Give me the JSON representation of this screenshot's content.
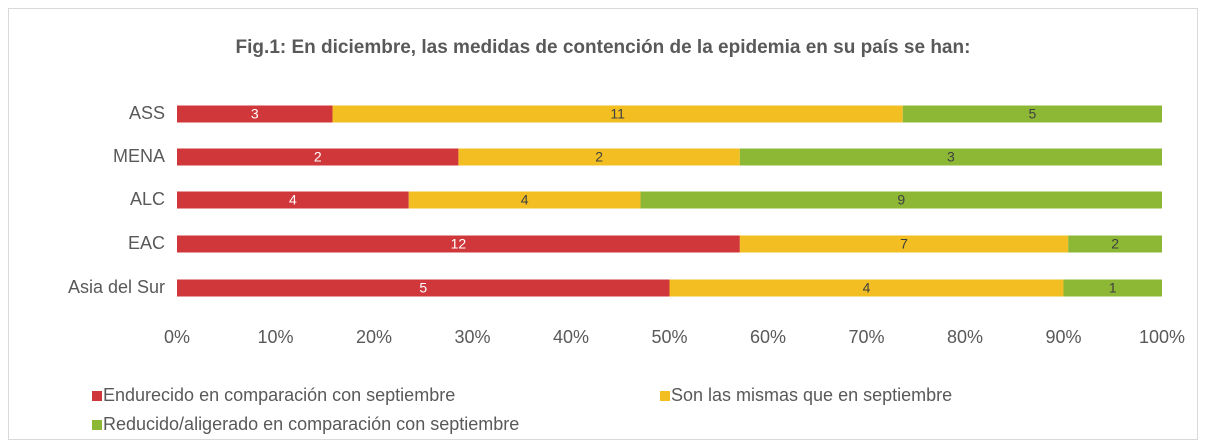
{
  "chart_data": {
    "type": "bar",
    "orientation": "horizontal",
    "stacking": "percent",
    "title": "Fig.1: En diciembre, las medidas de contención de la epidemia en su país se han:",
    "categories": [
      "ASS",
      "MENA",
      "ALC",
      "EAC",
      "Asia del Sur"
    ],
    "series": [
      {
        "name": "Endurecido en comparación con septiembre",
        "color": "#d0373b",
        "values": [
          3,
          2,
          4,
          12,
          5
        ]
      },
      {
        "name": "Son las mismas que en septiembre",
        "color": "#f2be22",
        "values": [
          11,
          2,
          4,
          7,
          4
        ]
      },
      {
        "name": "Reducido/aligerado en comparación con septiembre",
        "color": "#8db836",
        "values": [
          5,
          3,
          9,
          2,
          1
        ]
      }
    ],
    "xlim": [
      0,
      100
    ],
    "xticks": [
      {
        "value": 0,
        "label": "0%"
      },
      {
        "value": 10,
        "label": "10%"
      },
      {
        "value": 20,
        "label": "20%"
      },
      {
        "value": 30,
        "label": "30%"
      },
      {
        "value": 40,
        "label": "40%"
      },
      {
        "value": 50,
        "label": "50%"
      },
      {
        "value": 60,
        "label": "60%"
      },
      {
        "value": 70,
        "label": "70%"
      },
      {
        "value": 80,
        "label": "80%"
      },
      {
        "value": 90,
        "label": "90%"
      },
      {
        "value": 100,
        "label": "100%"
      }
    ],
    "grid": false,
    "legend": "bottom"
  }
}
